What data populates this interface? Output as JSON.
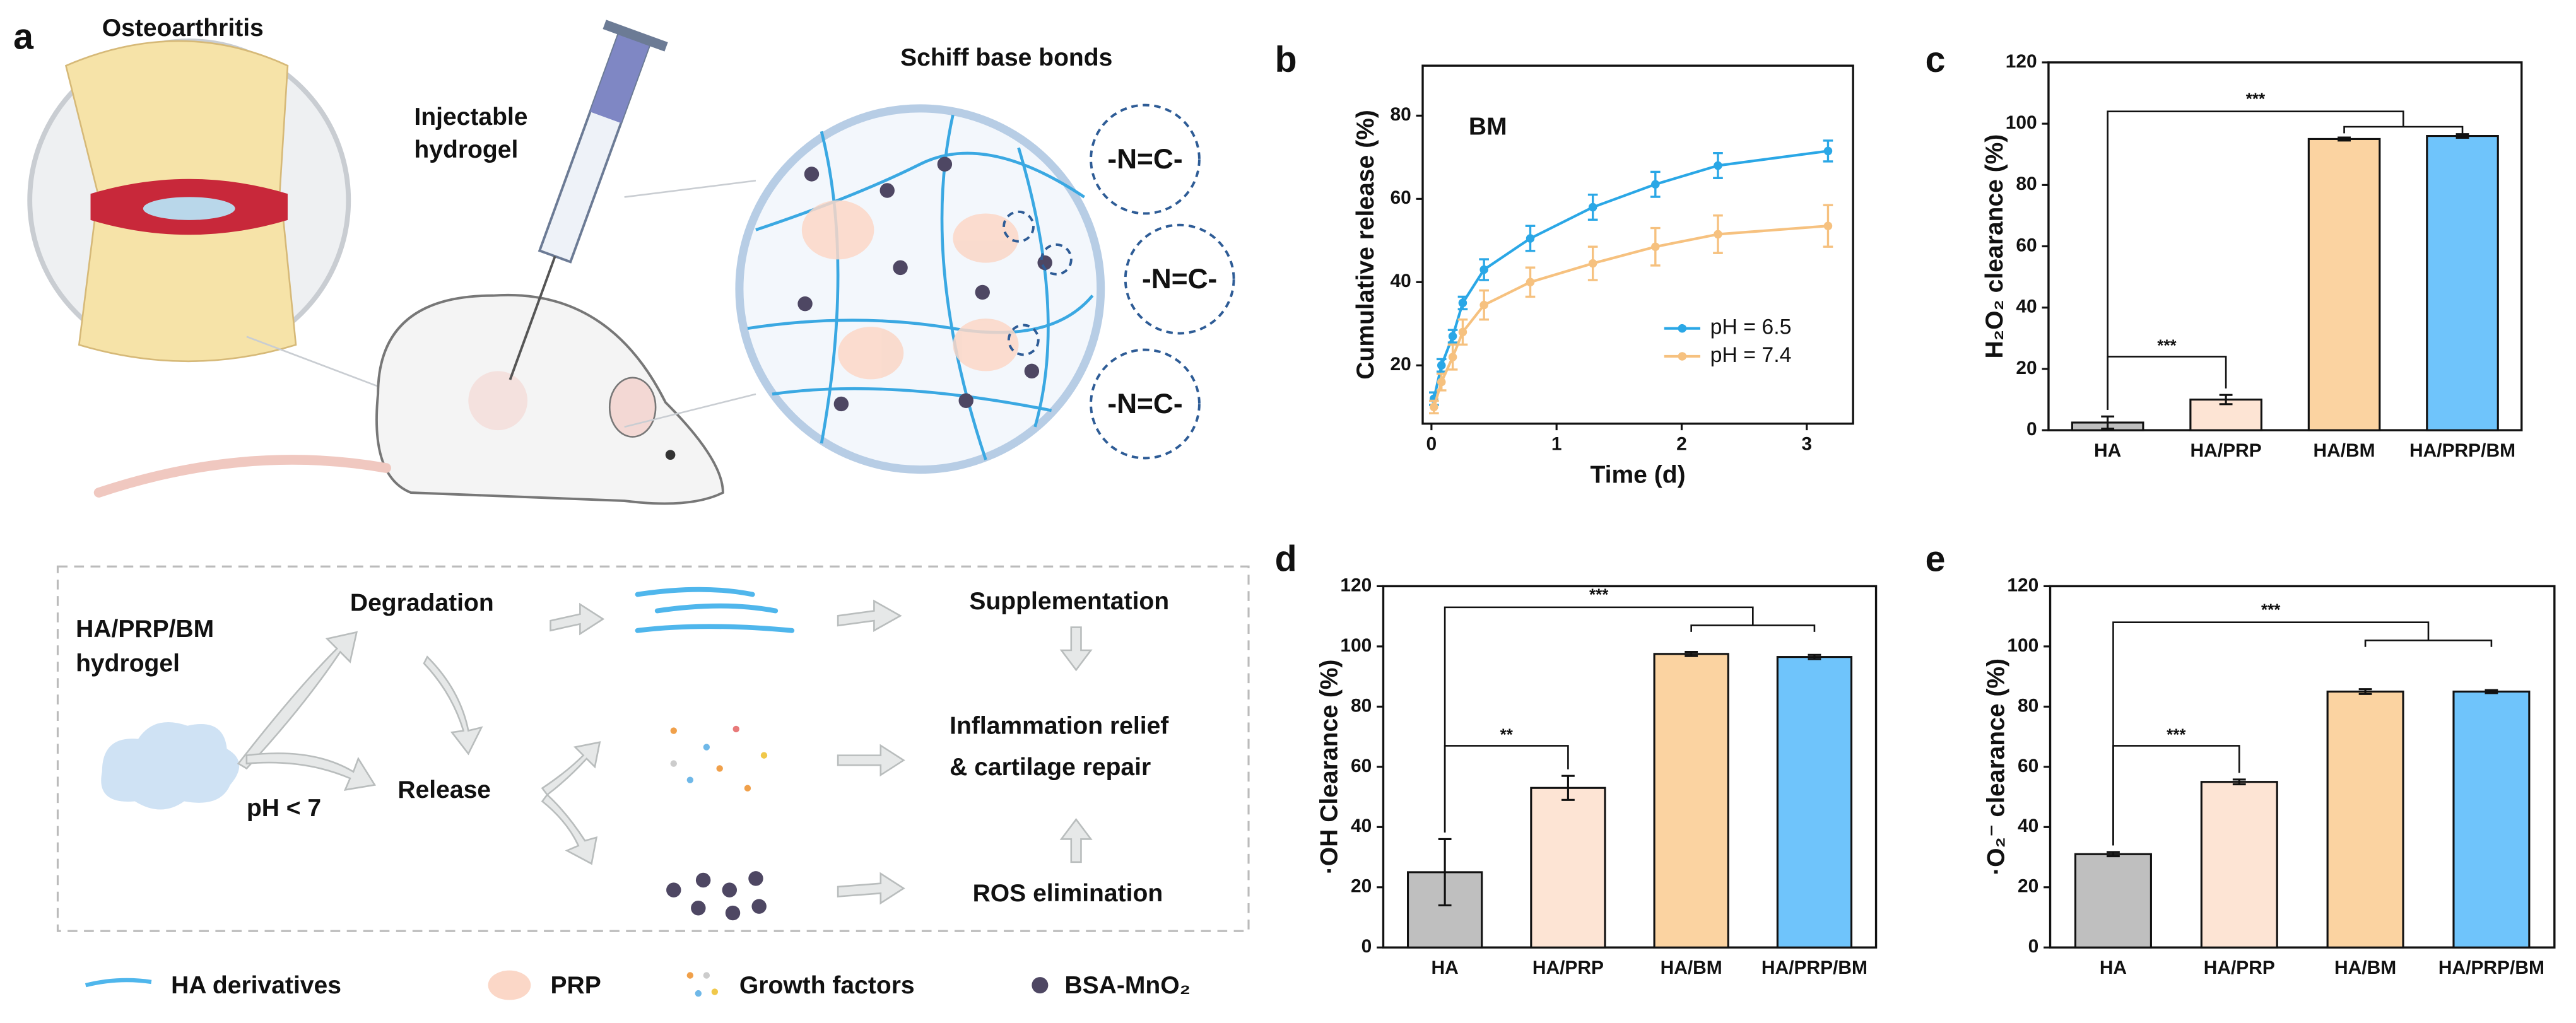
{
  "panel_labels": [
    "a",
    "b",
    "c",
    "d",
    "e"
  ],
  "diagram": {
    "osteoarthritis": "Osteoarthritis",
    "injectable": [
      "Injectable",
      "hydrogel"
    ],
    "schiff_title": "Schiff base bonds",
    "schiff_labels": [
      "-N=C-",
      "-N=C-",
      "-N=C-"
    ],
    "hydrogel": [
      "HA/PRP/BM",
      "hydrogel"
    ],
    "degradation": "Degradation",
    "release": "Release",
    "ph": "pH < 7",
    "supplementation": "Supplementation",
    "inflammation": [
      "Inflammation relief",
      "& cartilage repair"
    ],
    "ros": "ROS elimination",
    "legend": [
      "HA derivatives",
      "PRP",
      "Growth factors",
      "BSA-MnO₂"
    ]
  },
  "chart_data": [
    {
      "type": "line",
      "annotation": "BM",
      "xlabel": "Time (d)",
      "ylabel": "Cumulative release (%)",
      "x": [
        0.02,
        0.08,
        0.17,
        0.25,
        0.42,
        0.79,
        1.29,
        1.79,
        2.29,
        3.17
      ],
      "series": [
        {
          "name": "pH = 6.5",
          "color": "#2aa7e6",
          "values": [
            12,
            20,
            27,
            35,
            43,
            50.5,
            58,
            63.5,
            68,
            71.5
          ],
          "errors": [
            1.5,
            1.5,
            1.5,
            1.5,
            2.5,
            3,
            3,
            3,
            3,
            2.5
          ]
        },
        {
          "name": "pH = 7.4",
          "color": "#f6c17f",
          "values": [
            10,
            16,
            22,
            28,
            34.5,
            40,
            44.5,
            48.5,
            51.5,
            53.5
          ],
          "errors": [
            1.5,
            2,
            3,
            3,
            3.5,
            3.5,
            4,
            4.5,
            4.5,
            5
          ]
        }
      ],
      "xlim": [
        -0.07,
        3.37
      ],
      "xticks": [
        0,
        1,
        2,
        3
      ],
      "ylim": [
        6,
        92
      ],
      "yticks": [
        20,
        40,
        60,
        80
      ],
      "legend": "lower right"
    },
    {
      "type": "bar",
      "ylabel": "H₂O₂ clearance (%)",
      "categories": [
        "HA",
        "HA/PRP",
        "HA/BM",
        "HA/PRP/BM"
      ],
      "values": [
        2.5,
        10,
        95,
        96
      ],
      "errors": [
        2,
        1.5,
        0.5,
        0.6
      ],
      "colors": [
        "#bfbfbf",
        "#fde4d4",
        "#fbd3a1",
        "#6fc4fb"
      ],
      "ylim": [
        0,
        120
      ],
      "yticks": [
        0,
        20,
        40,
        60,
        80,
        100,
        120
      ],
      "annotations": [
        "***",
        "***"
      ]
    },
    {
      "type": "bar",
      "ylabel": "·OH Clearance (%)",
      "categories": [
        "HA",
        "HA/PRP",
        "HA/BM",
        "HA/PRP/BM"
      ],
      "values": [
        25,
        53,
        97.5,
        96.5
      ],
      "errors": [
        11,
        4,
        0.7,
        0.7
      ],
      "colors": [
        "#bfbfbf",
        "#fde4d4",
        "#fbd3a1",
        "#6fc4fb"
      ],
      "ylim": [
        0,
        120
      ],
      "yticks": [
        0,
        20,
        40,
        60,
        80,
        100,
        120
      ],
      "annotations": [
        "**",
        "***"
      ]
    },
    {
      "type": "bar",
      "ylabel": "·O₂⁻ clearance (%)",
      "categories": [
        "HA",
        "HA/PRP",
        "HA/BM",
        "HA/PRP/BM"
      ],
      "values": [
        31,
        55,
        85,
        85
      ],
      "errors": [
        0.7,
        0.8,
        0.8,
        0.5
      ],
      "colors": [
        "#bfbfbf",
        "#fde4d4",
        "#fbd3a1",
        "#6fc4fb"
      ],
      "ylim": [
        0,
        120
      ],
      "yticks": [
        0,
        20,
        40,
        60,
        80,
        100,
        120
      ],
      "annotations": [
        "***",
        "***"
      ]
    }
  ]
}
